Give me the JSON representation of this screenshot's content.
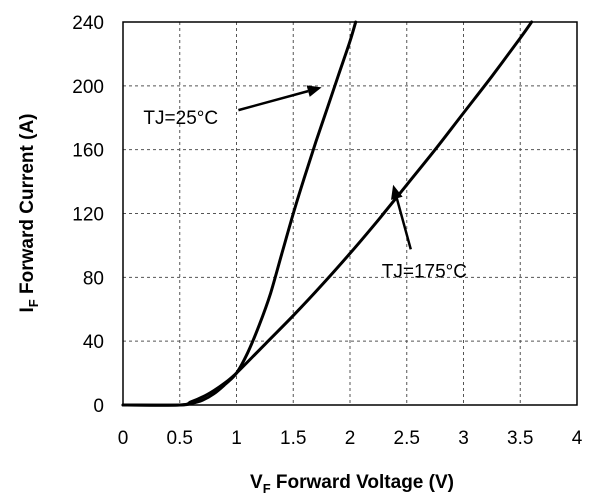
{
  "chart_data": {
    "type": "line",
    "xlabel_main": "V",
    "xlabel_sub": "F",
    "xlabel_rest": " Forward Voltage (V)",
    "ylabel_main": "I",
    "ylabel_sub": "F",
    "ylabel_rest": " Forward Current (A)",
    "xlim": [
      0,
      4
    ],
    "ylim": [
      0,
      240
    ],
    "xticks": [
      "0",
      "0.5",
      "1",
      "1.5",
      "2",
      "2.5",
      "3",
      "3.5",
      "4"
    ],
    "yticks": [
      "0",
      "40",
      "80",
      "120",
      "160",
      "200",
      "240"
    ],
    "grid": true,
    "series": [
      {
        "name": "TJ=25°C",
        "x": [
          0,
          0.5,
          0.6,
          0.7,
          0.8,
          0.9,
          1.0,
          1.1,
          1.2,
          1.3,
          1.4,
          1.5,
          1.6,
          1.7,
          1.8,
          1.9,
          2.0,
          2.05
        ],
        "y": [
          0,
          0,
          1,
          3,
          7,
          13,
          20,
          33,
          50,
          70,
          95,
          120,
          143,
          165,
          186,
          207,
          228,
          240
        ]
      },
      {
        "name": "TJ=175°C",
        "x": [
          0,
          0.5,
          0.6,
          0.7,
          0.8,
          0.9,
          1.0,
          1.25,
          1.5,
          1.75,
          2.0,
          2.25,
          2.5,
          2.75,
          3.0,
          3.25,
          3.5,
          3.6
        ],
        "y": [
          0,
          0,
          2,
          5,
          9,
          14,
          20,
          38,
          56,
          75,
          95,
          116,
          138,
          160,
          183,
          206,
          230,
          240
        ]
      }
    ],
    "annotations": [
      {
        "text": "TJ=25°C",
        "tx": 0.18,
        "ty": 176,
        "ax": 1.75,
        "ay": 199
      },
      {
        "text": "TJ=175°C",
        "tx": 2.28,
        "ty": 80,
        "ax": 2.38,
        "ay": 138
      }
    ]
  }
}
